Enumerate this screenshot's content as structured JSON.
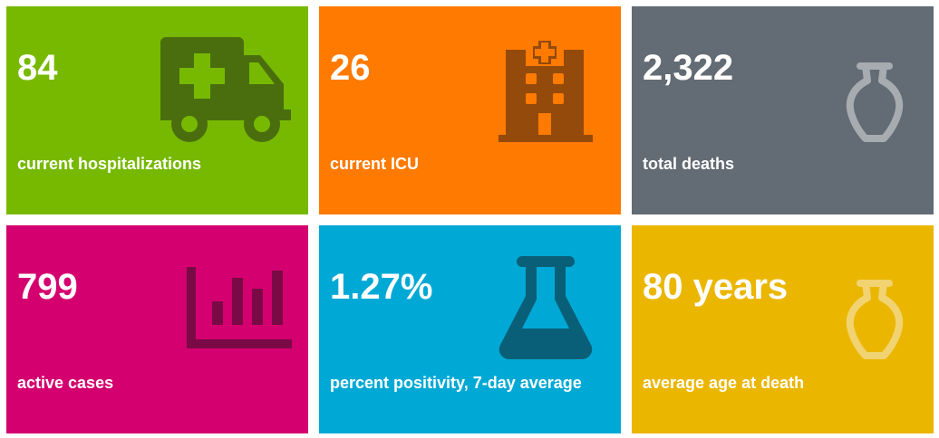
{
  "tiles": [
    {
      "value": "84",
      "label": "current hospitalizations",
      "icon": "ambulance-icon",
      "bg": "#77b900",
      "icon_color": "#4a6e0e"
    },
    {
      "value": "26",
      "label": "current ICU",
      "icon": "hospital-icon",
      "bg": "#ff7a00",
      "icon_color": "#944a0b"
    },
    {
      "value": "2,322",
      "label": "total deaths",
      "icon": "urn-icon",
      "bg": "#636b74",
      "icon_color": "#a7acb1"
    },
    {
      "value": "799",
      "label": "active cases",
      "icon": "bar-chart-icon",
      "bg": "#d4006f",
      "icon_color": "#7a0a45"
    },
    {
      "value": "1.27%",
      "label": "percent positivity, 7-day average",
      "icon": "flask-icon",
      "bg": "#00a9d5",
      "icon_color": "#0a5f78"
    },
    {
      "value": "80 years",
      "label": "average age at death",
      "icon": "urn-icon",
      "bg": "#ebb600",
      "icon_color": "#f2d372"
    }
  ]
}
